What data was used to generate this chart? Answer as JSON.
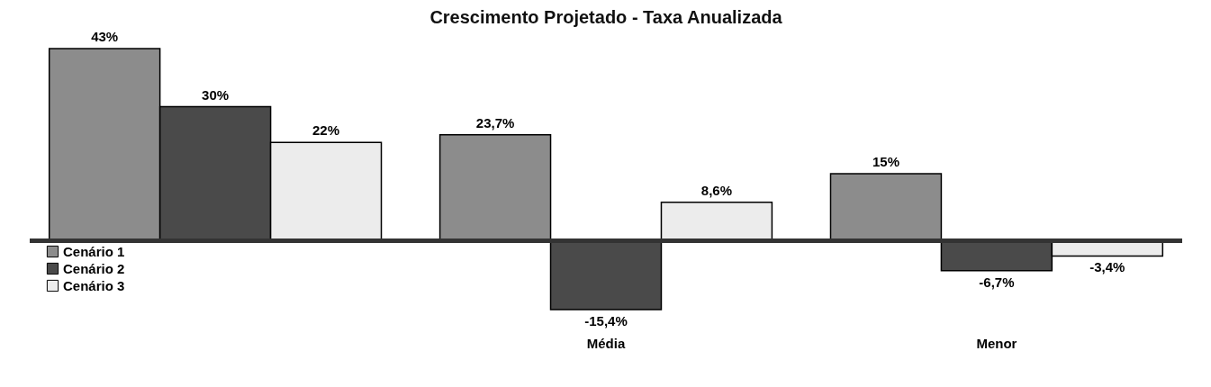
{
  "chart_data": {
    "type": "bar",
    "title": "Crescimento Projetado - Taxa Anualizada",
    "categories": [
      null,
      "Média",
      "Menor"
    ],
    "series": [
      {
        "name": "Cenário 1",
        "color": "#8c8c8c",
        "values": [
          43,
          23.7,
          15
        ],
        "value_labels": [
          "43%",
          "23,7%",
          "15%"
        ]
      },
      {
        "name": "Cenário 2",
        "color": "#4a4a4a",
        "values": [
          30,
          -15.4,
          -6.7
        ],
        "value_labels": [
          "30%",
          "-15,4%",
          "-6,7%"
        ]
      },
      {
        "name": "Cenário 3",
        "color": "#ececec",
        "values": [
          22,
          8.6,
          -3.4
        ],
        "value_labels": [
          "22%",
          "8,6%",
          "-3,4%"
        ]
      }
    ],
    "legend": "bottom left"
  }
}
